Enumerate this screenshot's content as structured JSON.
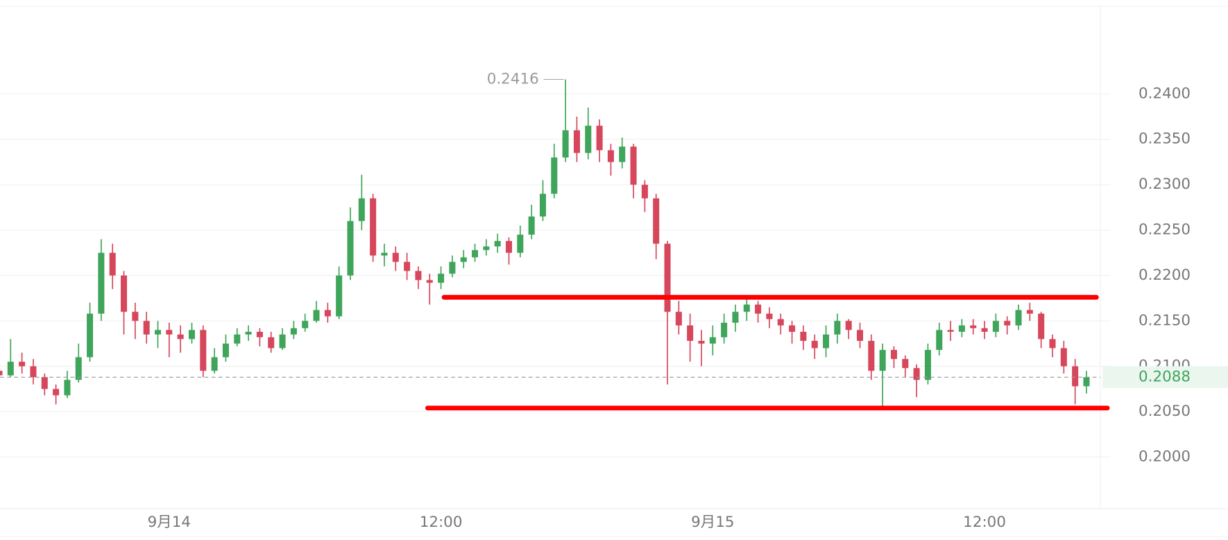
{
  "chart_data": {
    "type": "candlestick",
    "categories": [
      null,
      null,
      null,
      null,
      null,
      null,
      null,
      null,
      null,
      null,
      null,
      null,
      null,
      null,
      null,
      "9月14",
      null,
      null,
      null,
      null,
      null,
      null,
      null,
      null,
      null,
      null,
      null,
      null,
      null,
      null,
      null,
      null,
      null,
      null,
      null,
      null,
      null,
      null,
      null,
      "12:00",
      null,
      null,
      null,
      null,
      null,
      null,
      null,
      null,
      null,
      null,
      null,
      null,
      null,
      null,
      null,
      null,
      null,
      null,
      null,
      null,
      null,
      null,
      null,
      "9月15",
      null,
      null,
      null,
      null,
      null,
      null,
      null,
      null,
      null,
      null,
      null,
      null,
      null,
      null,
      null,
      null,
      null,
      null,
      null,
      null,
      null,
      null,
      null,
      "12:00",
      null,
      null,
      null,
      null,
      null,
      null,
      null,
      null,
      null
    ],
    "open": [
      0.2095,
      0.209,
      0.2105,
      0.21,
      0.2088,
      0.2075,
      0.2068,
      0.2085,
      0.211,
      0.2158,
      0.2225,
      0.22,
      0.216,
      0.215,
      0.2135,
      0.214,
      0.2135,
      0.213,
      0.214,
      0.2095,
      0.211,
      0.2125,
      0.2135,
      0.2138,
      0.2132,
      0.212,
      0.2135,
      0.2142,
      0.215,
      0.2162,
      0.2155,
      0.22,
      0.226,
      0.2285,
      0.2222,
      0.2225,
      0.2215,
      0.2205,
      0.2195,
      0.2192,
      0.2202,
      0.2215,
      0.222,
      0.2228,
      0.2232,
      0.2238,
      0.2225,
      0.2245,
      0.2265,
      0.229,
      0.233,
      0.236,
      0.2335,
      0.2365,
      0.2338,
      0.2325,
      0.2342,
      0.23,
      0.2285,
      0.2235,
      0.216,
      0.2145,
      0.2128,
      0.2125,
      0.2132,
      0.2148,
      0.216,
      0.2168,
      0.2158,
      0.2152,
      0.2145,
      0.2138,
      0.2128,
      0.212,
      0.2135,
      0.215,
      0.214,
      0.2128,
      0.2095,
      0.2118,
      0.2108,
      0.2098,
      0.2085,
      0.2118,
      0.214,
      0.2138,
      0.2145,
      0.2142,
      0.2138,
      0.215,
      0.2145,
      0.2162,
      0.2158,
      0.213,
      0.212,
      0.21,
      0.2078
    ],
    "high": [
      0.211,
      0.213,
      0.2115,
      0.2108,
      0.2092,
      0.208,
      0.2095,
      0.2125,
      0.217,
      0.224,
      0.2235,
      0.2205,
      0.217,
      0.216,
      0.215,
      0.2148,
      0.2145,
      0.2148,
      0.2145,
      0.212,
      0.2135,
      0.2142,
      0.2145,
      0.2142,
      0.2138,
      0.2142,
      0.215,
      0.2158,
      0.2172,
      0.217,
      0.221,
      0.2275,
      0.2311,
      0.229,
      0.2235,
      0.2232,
      0.2225,
      0.221,
      0.2202,
      0.221,
      0.2222,
      0.2228,
      0.2235,
      0.224,
      0.2246,
      0.2242,
      0.2255,
      0.2278,
      0.2305,
      0.2345,
      0.2416,
      0.2375,
      0.2385,
      0.2372,
      0.2345,
      0.2352,
      0.2345,
      0.2305,
      0.229,
      0.2238,
      0.2172,
      0.2158,
      0.214,
      0.2145,
      0.2158,
      0.2168,
      0.2178,
      0.2172,
      0.2165,
      0.2158,
      0.215,
      0.2145,
      0.2135,
      0.2145,
      0.2158,
      0.2152,
      0.2148,
      0.2135,
      0.2125,
      0.2122,
      0.2112,
      0.2102,
      0.2125,
      0.2148,
      0.215,
      0.2152,
      0.2152,
      0.215,
      0.2158,
      0.2155,
      0.2168,
      0.217,
      0.216,
      0.2135,
      0.2128,
      0.2108,
      0.2095
    ],
    "low": [
      0.2085,
      0.2088,
      0.2092,
      0.208,
      0.2068,
      0.2058,
      0.2065,
      0.2082,
      0.2105,
      0.215,
      0.2185,
      0.2135,
      0.213,
      0.2125,
      0.212,
      0.211,
      0.2115,
      0.2125,
      0.2088,
      0.2092,
      0.2105,
      0.2122,
      0.2128,
      0.2122,
      0.2115,
      0.2118,
      0.213,
      0.2138,
      0.2148,
      0.2148,
      0.2152,
      0.2195,
      0.225,
      0.2215,
      0.221,
      0.2205,
      0.2195,
      0.2185,
      0.2168,
      0.2185,
      0.2198,
      0.2208,
      0.2215,
      0.2222,
      0.2225,
      0.2212,
      0.222,
      0.224,
      0.226,
      0.2285,
      0.2325,
      0.2325,
      0.2328,
      0.2325,
      0.231,
      0.2318,
      0.2285,
      0.227,
      0.2218,
      0.208,
      0.2135,
      0.2105,
      0.21,
      0.2112,
      0.2125,
      0.2138,
      0.215,
      0.2148,
      0.2142,
      0.2135,
      0.2125,
      0.2118,
      0.2108,
      0.211,
      0.2125,
      0.213,
      0.212,
      0.2085,
      0.2054,
      0.2098,
      0.2088,
      0.2066,
      0.208,
      0.2112,
      0.2128,
      0.2132,
      0.2135,
      0.213,
      0.2132,
      0.2135,
      0.214,
      0.215,
      0.212,
      0.211,
      0.2092,
      0.2058,
      0.207
    ],
    "close": [
      0.209,
      0.2105,
      0.21,
      0.2088,
      0.2075,
      0.2068,
      0.2085,
      0.211,
      0.2158,
      0.2225,
      0.22,
      0.216,
      0.215,
      0.2135,
      0.214,
      0.2135,
      0.213,
      0.214,
      0.2095,
      0.211,
      0.2125,
      0.2135,
      0.2138,
      0.2132,
      0.212,
      0.2135,
      0.2142,
      0.215,
      0.2162,
      0.2155,
      0.22,
      0.226,
      0.2285,
      0.2222,
      0.2225,
      0.2215,
      0.2205,
      0.2195,
      0.2192,
      0.2202,
      0.2215,
      0.222,
      0.2228,
      0.2232,
      0.2238,
      0.2225,
      0.2245,
      0.2265,
      0.229,
      0.233,
      0.236,
      0.2335,
      0.2365,
      0.2338,
      0.2325,
      0.2342,
      0.23,
      0.2285,
      0.2235,
      0.216,
      0.2145,
      0.2128,
      0.2125,
      0.2132,
      0.2148,
      0.216,
      0.2168,
      0.2158,
      0.2152,
      0.2145,
      0.2138,
      0.2128,
      0.212,
      0.2135,
      0.215,
      0.214,
      0.2128,
      0.2095,
      0.2118,
      0.2108,
      0.2098,
      0.2085,
      0.2118,
      0.214,
      0.2138,
      0.2145,
      0.2142,
      0.2138,
      0.215,
      0.2145,
      0.2162,
      0.2158,
      0.213,
      0.212,
      0.21,
      0.2078,
      0.2088
    ],
    "up_color": "#3fa55a",
    "down_color": "#d6475b",
    "ylim": [
      0.19431,
      0.24966
    ],
    "yticks": [
      {
        "value": 0.2,
        "label": "0.2000"
      },
      {
        "value": 0.205,
        "label": "0.2050"
      },
      {
        "value": 0.21,
        "label": "0.2100"
      },
      {
        "value": 0.215,
        "label": "0.2150"
      },
      {
        "value": 0.22,
        "label": "0.2200"
      },
      {
        "value": 0.225,
        "label": "0.2250"
      },
      {
        "value": 0.23,
        "label": "0.2300"
      },
      {
        "value": 0.235,
        "label": "0.2350"
      },
      {
        "value": 0.24,
        "label": "0.2400"
      }
    ],
    "grid": true,
    "max_label": 0.2416,
    "current_price": 0.2088,
    "current_price_color": "#3fa55a",
    "drawings": [
      {
        "value": 0.2176,
        "color": "#ff0000"
      },
      {
        "value": 0.2054,
        "color": "#ff0000"
      }
    ]
  }
}
